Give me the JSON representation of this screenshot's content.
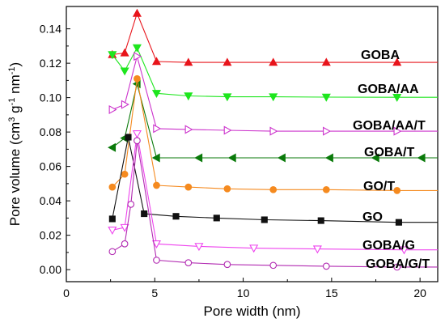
{
  "chart_data": {
    "type": "line",
    "xlabel": "Pore width (nm)",
    "ylabel_parts": [
      "Pore volume (cm",
      "3",
      " g",
      "-1",
      " nm",
      "-1",
      ")"
    ],
    "xlim": [
      0,
      21
    ],
    "ylim": [
      -0.007,
      0.153
    ],
    "xticks": [
      0,
      5,
      10,
      15,
      20
    ],
    "yticks": [
      0.0,
      0.02,
      0.04,
      0.06,
      0.08,
      0.1,
      0.12,
      0.14
    ],
    "ytick_labels": [
      "0.00",
      "0.02",
      "0.04",
      "0.06",
      "0.08",
      "0.10",
      "0.12",
      "0.14"
    ],
    "grid": false,
    "series": [
      {
        "name": "GOBA",
        "color": "#e8141b",
        "marker": "triangle-up",
        "filled": true,
        "x": [
          2.6,
          3.3,
          4.0,
          5.1,
          6.9,
          9.1,
          11.7,
          14.7,
          18.7,
          21
        ],
        "y": [
          0.125,
          0.126,
          0.149,
          0.121,
          0.1205,
          0.1205,
          0.1205,
          0.1205,
          0.1205,
          0.1205
        ]
      },
      {
        "name": "GOBA/AA",
        "color": "#1ee61e",
        "marker": "triangle-down",
        "filled": true,
        "x": [
          2.6,
          3.3,
          4.0,
          5.1,
          6.9,
          9.1,
          11.7,
          14.7,
          18.7,
          21
        ],
        "y": [
          0.125,
          0.1155,
          0.129,
          0.1025,
          0.101,
          0.1005,
          0.1005,
          0.1003,
          0.1002,
          0.1002
        ]
      },
      {
        "name": "GOBA/AA/T",
        "color": "#cc33cc",
        "marker": "triangle-right",
        "filled": false,
        "x": [
          2.6,
          3.3,
          4.0,
          5.1,
          6.9,
          9.1,
          11.7,
          14.7,
          18.7,
          21
        ],
        "y": [
          0.093,
          0.096,
          0.124,
          0.082,
          0.0815,
          0.081,
          0.0805,
          0.0805,
          0.0805,
          0.0805
        ]
      },
      {
        "name": "GOBA/T",
        "color": "#0a7a0a",
        "marker": "triangle-left",
        "filled": true,
        "x": [
          2.6,
          3.3,
          4.0,
          5.1,
          7.5,
          9.4,
          12.2,
          14.9,
          17.5,
          20.1,
          21
        ],
        "y": [
          0.071,
          0.0765,
          0.108,
          0.065,
          0.065,
          0.065,
          0.065,
          0.065,
          0.065,
          0.065,
          0.065
        ]
      },
      {
        "name": "GO/T",
        "color": "#f58a1f",
        "marker": "circle",
        "filled": true,
        "x": [
          2.6,
          3.3,
          4.0,
          5.1,
          6.9,
          9.1,
          11.7,
          14.7,
          18.7,
          21
        ],
        "y": [
          0.048,
          0.0555,
          0.111,
          0.049,
          0.048,
          0.047,
          0.0465,
          0.0465,
          0.046,
          0.046
        ]
      },
      {
        "name": "GO",
        "color": "#111111",
        "marker": "square",
        "filled": true,
        "x": [
          2.6,
          3.5,
          4.4,
          6.2,
          8.5,
          11.2,
          14.4,
          18.8,
          21
        ],
        "y": [
          0.0295,
          0.077,
          0.0325,
          0.031,
          0.03,
          0.029,
          0.0285,
          0.0275,
          0.0275
        ]
      },
      {
        "name": "GOBA/G",
        "color": "#ee44ee",
        "marker": "triangle-down",
        "filled": false,
        "x": [
          2.6,
          3.3,
          4.0,
          5.1,
          7.5,
          10.6,
          14.2,
          19.1,
          21
        ],
        "y": [
          0.023,
          0.0245,
          0.079,
          0.015,
          0.0135,
          0.0125,
          0.012,
          0.0115,
          0.0115
        ]
      },
      {
        "name": "GOBA/G/T",
        "color": "#b22bb2",
        "marker": "circle",
        "filled": false,
        "x": [
          2.6,
          3.3,
          3.65,
          4.0,
          5.1,
          6.9,
          9.1,
          11.7,
          14.7,
          18.7,
          21
        ],
        "y": [
          0.0105,
          0.015,
          0.038,
          0.075,
          0.0055,
          0.004,
          0.003,
          0.0025,
          0.002,
          0.0015,
          0.0015
        ]
      }
    ]
  }
}
